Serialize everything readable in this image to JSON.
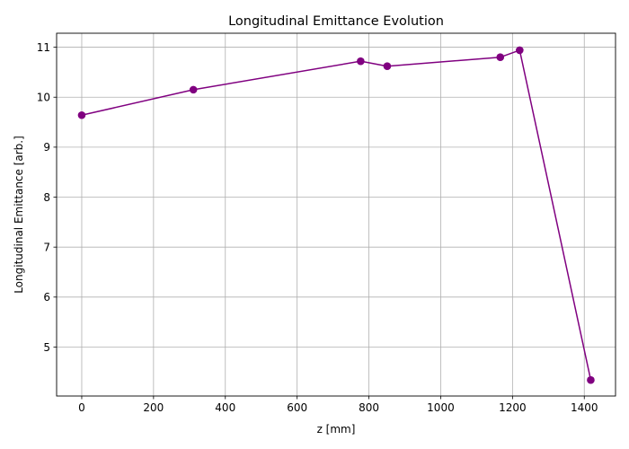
{
  "chart_data": {
    "type": "line",
    "title": "Longitudinal Emittance Evolution",
    "xlabel": "z [mm]",
    "ylabel": "Longitudinal Emittance [arb.]",
    "xlim": [
      -70,
      1487
    ],
    "ylim": [
      4.02,
      11.28
    ],
    "xticks": [
      0,
      200,
      400,
      600,
      800,
      1000,
      1200,
      1400
    ],
    "yticks": [
      5,
      6,
      7,
      8,
      9,
      10,
      11
    ],
    "grid": true,
    "series": [
      {
        "color": "#800080",
        "marker": "circle",
        "x": [
          0,
          311,
          777,
          851,
          1166,
          1220,
          1418
        ],
        "y": [
          9.64,
          10.15,
          10.72,
          10.62,
          10.8,
          10.94,
          4.34
        ]
      }
    ]
  }
}
